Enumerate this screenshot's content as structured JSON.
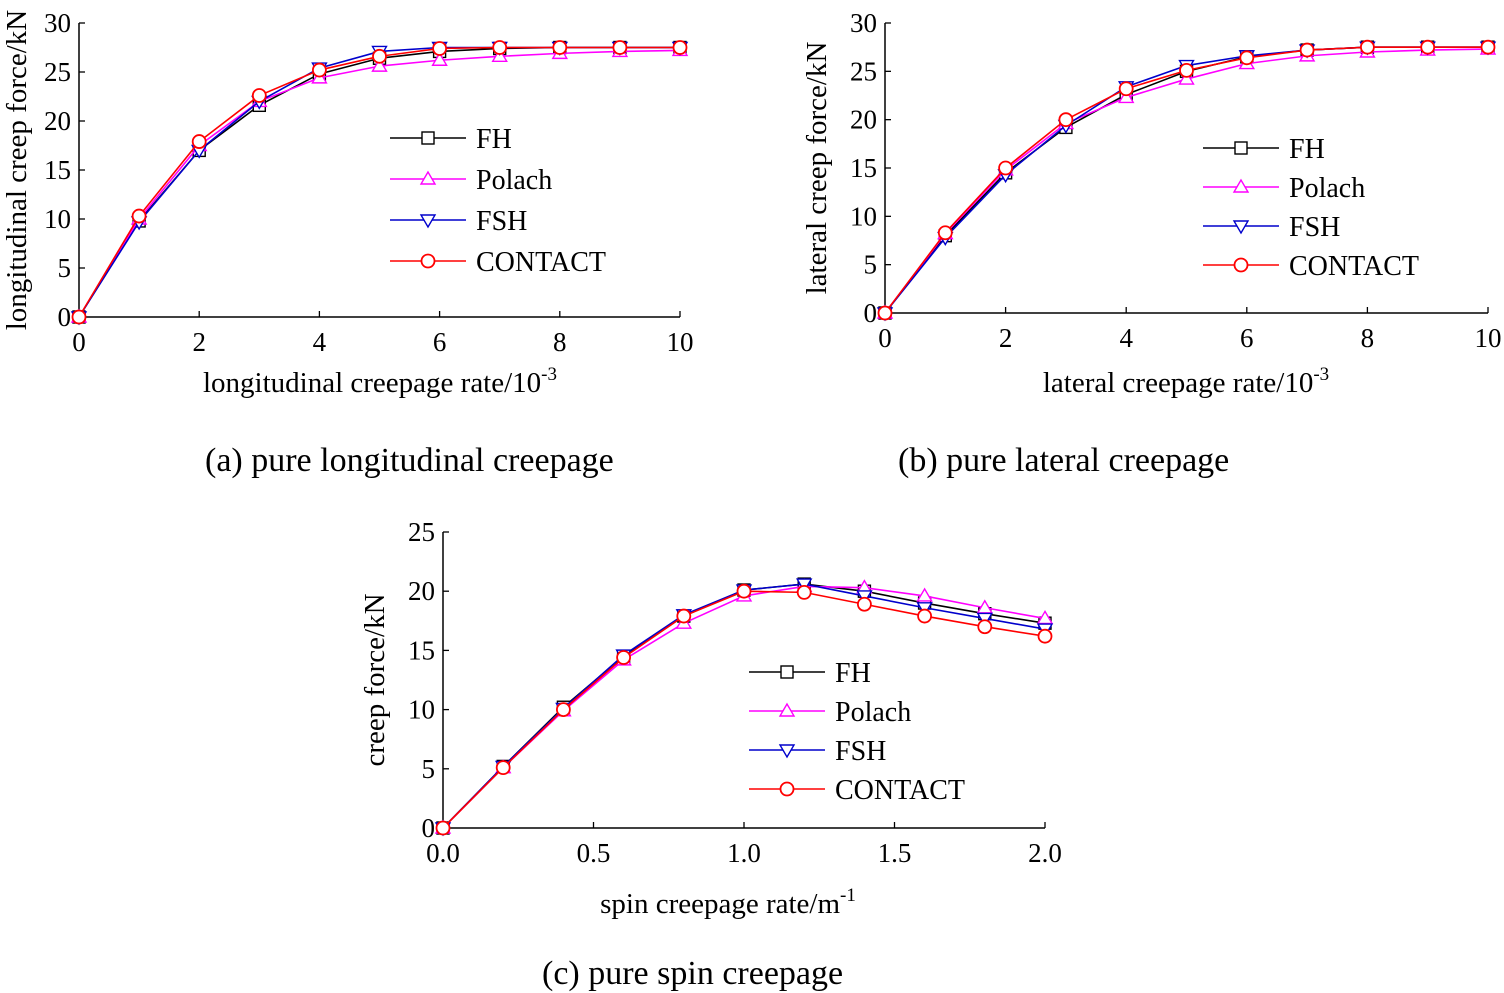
{
  "chart_data": [
    {
      "type": "line",
      "caption": "(a) pure longitudinal creepage",
      "xlabel": "longitudinal creepage rate/10",
      "xlabel_sup": "-3",
      "ylabel": "longitudinal creep force/kN",
      "xlim": [
        0,
        10
      ],
      "ylim": [
        0,
        30
      ],
      "xticks": [
        0,
        2,
        4,
        6,
        8,
        10
      ],
      "xtick_labels": [
        "0",
        "2",
        "4",
        "6",
        "8",
        "10"
      ],
      "yticks": [
        0,
        5,
        10,
        15,
        20,
        25,
        30
      ],
      "ytick_labels": [
        "0",
        "5",
        "10",
        "15",
        "20",
        "25",
        "30"
      ],
      "grid": false,
      "legend_position": "center-right",
      "x": [
        0,
        1,
        2,
        3,
        4,
        5,
        6,
        7,
        8,
        9,
        10
      ],
      "series": [
        {
          "name": "FH",
          "color": "#000000",
          "marker": "square",
          "values": [
            0,
            9.8,
            17.0,
            21.6,
            24.8,
            26.4,
            27.1,
            27.4,
            27.5,
            27.5,
            27.5
          ]
        },
        {
          "name": "Polach",
          "color": "#ff00ff",
          "marker": "triangle-up",
          "values": [
            0,
            10.0,
            17.5,
            22.0,
            24.4,
            25.6,
            26.2,
            26.6,
            26.9,
            27.1,
            27.2
          ]
        },
        {
          "name": "FSH",
          "color": "#0000cc",
          "marker": "triangle-down",
          "values": [
            0,
            9.7,
            17.0,
            22.0,
            25.4,
            27.1,
            27.5,
            27.5,
            27.5,
            27.5,
            27.5
          ]
        },
        {
          "name": "CONTACT",
          "color": "#ff0000",
          "marker": "circle",
          "values": [
            0,
            10.3,
            17.9,
            22.6,
            25.2,
            26.6,
            27.4,
            27.5,
            27.5,
            27.5,
            27.5
          ]
        }
      ]
    },
    {
      "type": "line",
      "caption": "(b) pure lateral creepage",
      "xlabel": "lateral creepage rate/10",
      "xlabel_sup": "-3",
      "ylabel": "lateral creep force/kN",
      "xlim": [
        0,
        10
      ],
      "ylim": [
        0,
        30
      ],
      "xticks": [
        0,
        2,
        4,
        6,
        8,
        10
      ],
      "xtick_labels": [
        "0",
        "2",
        "4",
        "6",
        "8",
        "10"
      ],
      "yticks": [
        0,
        5,
        10,
        15,
        20,
        25,
        30
      ],
      "ytick_labels": [
        "0",
        "5",
        "10",
        "15",
        "20",
        "25",
        "30"
      ],
      "grid": false,
      "legend_position": "center-right",
      "x": [
        0,
        1,
        2,
        3,
        4,
        5,
        6,
        7,
        8,
        9,
        10
      ],
      "series": [
        {
          "name": "FH",
          "color": "#000000",
          "marker": "square",
          "values": [
            0,
            8.0,
            14.5,
            19.2,
            22.6,
            25.0,
            26.5,
            27.2,
            27.5,
            27.5,
            27.5
          ]
        },
        {
          "name": "Polach",
          "color": "#ff00ff",
          "marker": "triangle-up",
          "values": [
            0,
            8.2,
            14.8,
            19.6,
            22.3,
            24.2,
            25.8,
            26.6,
            27.0,
            27.2,
            27.3
          ]
        },
        {
          "name": "FSH",
          "color": "#0000cc",
          "marker": "triangle-down",
          "values": [
            0,
            7.8,
            14.3,
            19.4,
            23.4,
            25.6,
            26.6,
            27.2,
            27.5,
            27.5,
            27.5
          ]
        },
        {
          "name": "CONTACT",
          "color": "#ff0000",
          "marker": "circle",
          "values": [
            0,
            8.3,
            15.0,
            20.0,
            23.2,
            25.1,
            26.4,
            27.2,
            27.5,
            27.5,
            27.5
          ]
        }
      ]
    },
    {
      "type": "line",
      "caption": "(c) pure spin creepage",
      "xlabel": "spin creepage rate/m",
      "xlabel_sup": "-1",
      "ylabel": "creep force/kN",
      "xlim": [
        0,
        2
      ],
      "ylim": [
        0,
        25
      ],
      "xticks": [
        0,
        0.5,
        1.0,
        1.5,
        2.0
      ],
      "xtick_labels": [
        "0.0",
        "0.5",
        "1.0",
        "1.5",
        "2.0"
      ],
      "yticks": [
        0,
        5,
        10,
        15,
        20,
        25
      ],
      "ytick_labels": [
        "0",
        "5",
        "10",
        "15",
        "20",
        "25"
      ],
      "grid": false,
      "legend_position": "center-right",
      "x": [
        0,
        0.2,
        0.4,
        0.6,
        0.8,
        1.0,
        1.2,
        1.4,
        1.6,
        1.8,
        2.0
      ],
      "series": [
        {
          "name": "FH",
          "color": "#000000",
          "marker": "square",
          "values": [
            0,
            5.2,
            10.2,
            14.5,
            17.9,
            20.1,
            20.6,
            20.0,
            19.0,
            18.1,
            17.3
          ]
        },
        {
          "name": "Polach",
          "color": "#ff00ff",
          "marker": "triangle-up",
          "values": [
            0,
            5.1,
            9.9,
            14.2,
            17.3,
            19.6,
            20.4,
            20.3,
            19.6,
            18.6,
            17.7
          ]
        },
        {
          "name": "FSH",
          "color": "#0000cc",
          "marker": "triangle-down",
          "values": [
            0,
            5.2,
            10.1,
            14.6,
            18.0,
            20.1,
            20.6,
            19.6,
            18.6,
            17.7,
            16.8
          ]
        },
        {
          "name": "CONTACT",
          "color": "#ff0000",
          "marker": "circle",
          "values": [
            0,
            5.1,
            10.0,
            14.4,
            17.9,
            20.0,
            19.9,
            18.9,
            17.9,
            17.0,
            16.2
          ]
        }
      ]
    }
  ]
}
